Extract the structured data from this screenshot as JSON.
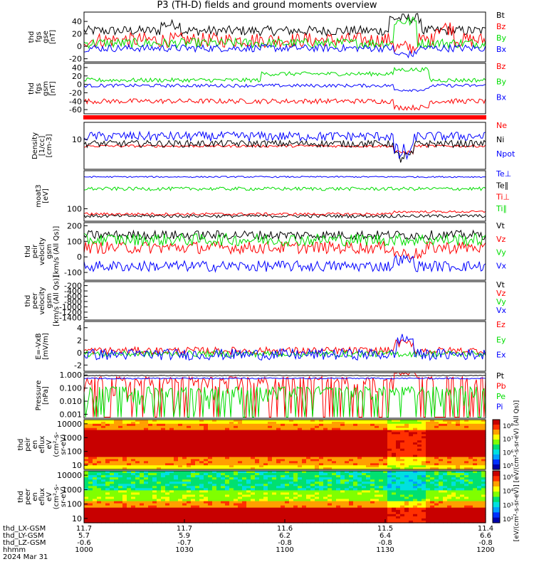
{
  "title": "P3 (TH-D) fields and ground moments overview",
  "colors": {
    "black": "#000000",
    "red": "#ff0000",
    "green": "#00dd00",
    "blue": "#0000ff"
  },
  "date_label": "2024 Mar 31",
  "time_axis": {
    "row_labels": [
      "thd_LX-GSM",
      "thd_LY-GSM",
      "thd_LZ-GSM",
      "hhmm"
    ],
    "ticks": [
      {
        "values": [
          "11.7",
          "5.7",
          "-0.6",
          "1000"
        ],
        "time": "1000"
      },
      {
        "values": [
          "11.7",
          "5.9",
          "-0.7",
          "1030"
        ],
        "time": "1030"
      },
      {
        "values": [
          "11.6",
          "6.2",
          "-0.8",
          "1100"
        ],
        "time": "1100"
      },
      {
        "values": [
          "11.5",
          "6.4",
          "-0.8",
          "1130"
        ],
        "time": "1130"
      },
      {
        "values": [
          "11.4",
          "6.6",
          "-0.8",
          "1200"
        ],
        "time": "1200"
      }
    ]
  },
  "colorbar": {
    "upper_ticks": [
      "10⁸",
      "10⁷",
      "10⁶",
      "10⁵"
    ],
    "lower_ticks": [
      "10⁵",
      "10⁴",
      "10³",
      "10²"
    ],
    "label": "[eV/(cm²-s-sr-eV)]   [eV/(cm²-s-sr-eV) (All Qs)]"
  },
  "chart_data": [
    {
      "type": "line",
      "panel": "fgs-gse",
      "ylabel": [
        "thd",
        "fgs",
        "gse",
        "[nT]"
      ],
      "yticks": [
        "40",
        "20",
        "0",
        "-20"
      ],
      "ylim": [
        -25,
        55
      ],
      "series": [
        {
          "name": "Bt",
          "color": "#000000",
          "base": 25,
          "noise": 8,
          "events": [
            [
              0.19,
              0.24,
              10
            ],
            [
              0.76,
              0.84,
              20
            ]
          ]
        },
        {
          "name": "Bz",
          "color": "#ff0000",
          "base": 10,
          "noise": 12,
          "events": [
            [
              0.77,
              0.83,
              -12
            ],
            [
              0.87,
              0.92,
              20
            ]
          ]
        },
        {
          "name": "By",
          "color": "#00dd00",
          "base": 5,
          "noise": 8,
          "events": [
            [
              0.77,
              0.83,
              35
            ]
          ]
        },
        {
          "name": "Bx",
          "color": "#0000ff",
          "base": -3,
          "noise": 6,
          "events": [
            [
              0.77,
              0.83,
              -10
            ]
          ]
        }
      ]
    },
    {
      "type": "line",
      "panel": "fgs-gsm",
      "ylabel": [
        "thd",
        "fgs",
        "gsm",
        "[nT]"
      ],
      "yticks": [
        "40",
        "20",
        "0",
        "-20",
        "-40",
        "-60"
      ],
      "ylim": [
        -70,
        50
      ],
      "series": [
        {
          "name": "Bz",
          "color": "#ff0000",
          "base": -40,
          "noise": 6,
          "events": [
            [
              0.77,
              0.86,
              -15
            ]
          ]
        },
        {
          "name": "By",
          "color": "#00dd00",
          "base": 10,
          "noise": 5,
          "events": [
            [
              0.44,
              0.77,
              15
            ],
            [
              0.77,
              0.86,
              25
            ]
          ]
        },
        {
          "name": "Bx",
          "color": "#0000ff",
          "base": -3,
          "noise": 4,
          "events": [
            [
              0.77,
              0.86,
              -10
            ]
          ]
        }
      ]
    },
    {
      "type": "bar",
      "panel": "quality-flag",
      "ylabel": [],
      "yticks": [],
      "ylim": [
        0,
        1
      ],
      "series": [
        {
          "name": "",
          "color": "#ff0000",
          "base": 0.5,
          "noise": 0,
          "events": []
        }
      ]
    },
    {
      "type": "line",
      "panel": "density",
      "ylabel": [
        "Density",
        "[1/cc]",
        "[cm-3]"
      ],
      "yticks": [
        "10"
      ],
      "ylim": [
        2,
        25
      ],
      "series": [
        {
          "name": "Ne",
          "color": "#ff0000",
          "base": 7,
          "noise": 0.5,
          "events": [
            [
              0.77,
              0.82,
              -2
            ]
          ]
        },
        {
          "name": "Ni",
          "color": "#000000",
          "base": 8,
          "noise": 1.5,
          "events": [
            [
              0.77,
              0.82,
              -4
            ]
          ]
        },
        {
          "name": "Npot",
          "color": "#0000ff",
          "base": 12,
          "noise": 3,
          "events": [
            [
              0.77,
              0.82,
              -7
            ]
          ]
        }
      ]
    },
    {
      "type": "line",
      "panel": "temperature",
      "ylabel": [
        "moat3",
        "[eV]"
      ],
      "yticks": [
        "100"
      ],
      "ylim": [
        30,
        4000
      ],
      "series": [
        {
          "name": "Te⊥",
          "color": "#0000ff",
          "base": 2200,
          "noise": 150,
          "events": []
        },
        {
          "name": "Te∥",
          "color": "#000000",
          "base": 50,
          "noise": 8,
          "events": []
        },
        {
          "name": "Ti⊥",
          "color": "#ff0000",
          "base": 60,
          "noise": 8,
          "events": [
            [
              0.77,
              1.0,
              15
            ]
          ]
        },
        {
          "name": "Ti∥",
          "color": "#00dd00",
          "base": 700,
          "noise": 120,
          "events": []
        }
      ]
    },
    {
      "type": "line",
      "panel": "peir-velocity",
      "ylabel": [
        "thd",
        "peir",
        "velocity",
        "gsm",
        "[km/s (All Qs)]"
      ],
      "yticks": [
        "200",
        "100",
        "0",
        "-100"
      ],
      "ylim": [
        -150,
        220
      ],
      "series": [
        {
          "name": "Vt",
          "color": "#000000",
          "base": 140,
          "noise": 30,
          "events": []
        },
        {
          "name": "Vz",
          "color": "#ff0000",
          "base": 60,
          "noise": 40,
          "events": [
            [
              0.77,
              0.85,
              -40
            ]
          ]
        },
        {
          "name": "Vy",
          "color": "#00dd00",
          "base": 110,
          "noise": 40,
          "events": []
        },
        {
          "name": "Vx",
          "color": "#0000ff",
          "base": -60,
          "noise": 35,
          "events": [
            [
              0.77,
              0.82,
              40
            ]
          ]
        }
      ]
    },
    {
      "type": "line",
      "panel": "peer-velocity",
      "ylabel": [
        "thd",
        "peer",
        "velocity",
        "gsm",
        "[km/s (All Qs)]"
      ],
      "yticks": [
        "-200",
        "-400",
        "-600",
        "-800",
        "-1000",
        "-1200",
        "-1400"
      ],
      "ylim": [
        -1500,
        -50
      ],
      "legend": [
        "Vt",
        "Vz",
        "Vy",
        "Vx"
      ],
      "series": []
    },
    {
      "type": "line",
      "panel": "efield",
      "ylabel": [
        "E=-VxB",
        "[mV/m]"
      ],
      "yticks": [
        "4",
        "2",
        "0",
        "-2"
      ],
      "ylim": [
        -3,
        5
      ],
      "series": [
        {
          "name": "Ez",
          "color": "#ff0000",
          "base": 0.3,
          "noise": 0.6,
          "events": [
            [
              0.77,
              0.82,
              1.2
            ]
          ]
        },
        {
          "name": "Ey",
          "color": "#00dd00",
          "base": -0.2,
          "noise": 0.5,
          "events": []
        },
        {
          "name": "Ex",
          "color": "#0000ff",
          "base": -0.3,
          "noise": 0.9,
          "events": [
            [
              0.78,
              0.82,
              2.5
            ]
          ]
        }
      ]
    },
    {
      "type": "line",
      "panel": "pressure",
      "ylabel": [
        "Pressure",
        "[nPa]"
      ],
      "yticks": [
        "1.000",
        "0.100",
        "0.010",
        "0.001"
      ],
      "ylim": [
        0.0005,
        1.5
      ],
      "series": [
        {
          "name": "Pt",
          "color": "#000000",
          "base": 0.9,
          "noise": 0.05,
          "events": []
        },
        {
          "name": "Pb",
          "color": "#ff0000",
          "base": 0.25,
          "noise": 0.5,
          "events": [
            [
              0.77,
              0.83,
              1.2
            ]
          ]
        },
        {
          "name": "Pe",
          "color": "#00dd00",
          "base": 0.05,
          "noise": 0.08,
          "events": []
        },
        {
          "name": "Pi",
          "color": "#0000ff",
          "base": 0.55,
          "noise": 0.06,
          "events": []
        }
      ]
    },
    {
      "type": "heatmap",
      "panel": "peir-spectrogram",
      "ylabel": [
        "thd",
        "peir",
        "en",
        "eflux",
        "eV",
        "(cm²-s-",
        "sr-eV)"
      ],
      "yticks": [
        "10000",
        "1000",
        "100",
        "10"
      ],
      "ylim": [
        5,
        20000
      ],
      "zlim": [
        100000,
        100000000
      ]
    },
    {
      "type": "heatmap",
      "panel": "peer-spectrogram",
      "ylabel": [
        "thd",
        "peer",
        "en",
        "eflux",
        "eV",
        "(cm²-s-",
        "sr-eV)"
      ],
      "yticks": [
        "10000",
        "1000",
        "100",
        "10"
      ],
      "ylim": [
        5,
        20000
      ],
      "zlim": [
        100,
        100000
      ]
    }
  ]
}
